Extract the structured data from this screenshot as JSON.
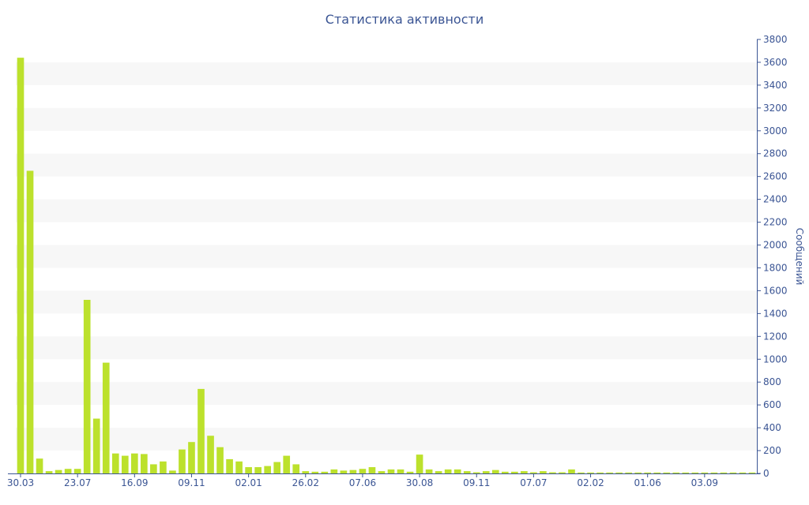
{
  "chart_data": {
    "type": "bar",
    "title": "Статистика активности",
    "ylabel": "Сообщений",
    "ylim": [
      0,
      3800
    ],
    "y_ticks": [
      0,
      200,
      400,
      600,
      800,
      1000,
      1200,
      1400,
      1600,
      1800,
      2000,
      2200,
      2400,
      2600,
      2800,
      3000,
      3200,
      3400,
      3600,
      3800
    ],
    "y_axis_position": "right",
    "grid": "horizontal alternating bands",
    "x_tick_labels": [
      {
        "label": "30.03",
        "index": 0
      },
      {
        "label": "23.07",
        "index": 6
      },
      {
        "label": "16.09",
        "index": 12
      },
      {
        "label": "09.11",
        "index": 18
      },
      {
        "label": "02.01",
        "index": 24
      },
      {
        "label": "26.02",
        "index": 30
      },
      {
        "label": "07.06",
        "index": 36
      },
      {
        "label": "30.08",
        "index": 42
      },
      {
        "label": "09.11",
        "index": 48
      },
      {
        "label": "07.07",
        "index": 54
      },
      {
        "label": "02.02",
        "index": 60
      },
      {
        "label": "01.06",
        "index": 66
      },
      {
        "label": "03.09",
        "index": 72
      }
    ],
    "series": [
      {
        "color": "#bce12c",
        "values": [
          3640,
          2650,
          130,
          20,
          30,
          40,
          40,
          1520,
          480,
          970,
          175,
          155,
          175,
          170,
          80,
          105,
          25,
          210,
          275,
          740,
          330,
          230,
          125,
          105,
          55,
          55,
          65,
          100,
          155,
          80,
          20,
          15,
          15,
          35,
          25,
          30,
          40,
          55,
          20,
          35,
          35,
          15,
          165,
          35,
          20,
          35,
          35,
          20,
          10,
          20,
          30,
          15,
          15,
          20,
          10,
          20,
          10,
          10,
          35,
          8,
          8,
          8,
          8,
          8,
          8,
          8,
          8,
          8,
          8,
          8,
          8,
          8,
          8,
          8,
          8,
          8,
          8,
          8
        ]
      }
    ]
  }
}
